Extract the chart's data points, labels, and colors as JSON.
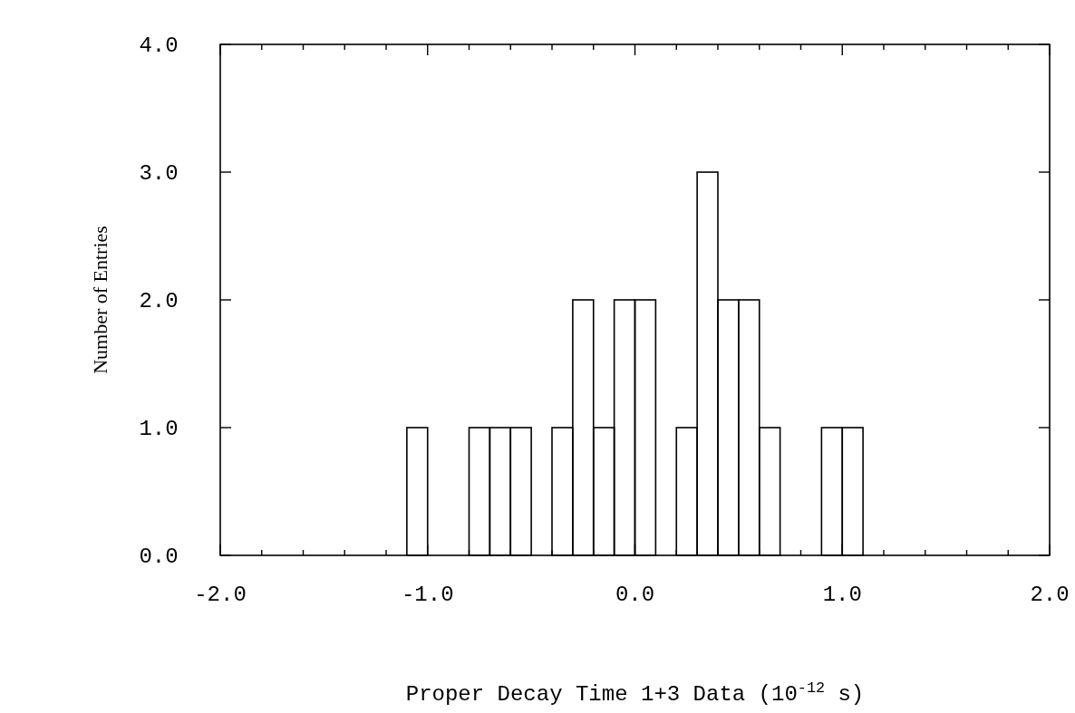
{
  "chart_data": {
    "type": "histogram",
    "xlabel": "Proper Decay Time 1+3 Data (10$^{-12}$ s)",
    "ylabel": "Number of Entries",
    "color": "#000000",
    "bins": [
      -2.0,
      -1.9,
      -1.8,
      -1.7,
      -1.6,
      -1.5,
      -1.4,
      -1.3,
      -1.2,
      -1.1,
      -1.0,
      -0.9,
      -0.8,
      -0.7,
      -0.6,
      -0.5,
      -0.4,
      -0.3,
      -0.2,
      -0.1,
      0.0,
      0.1,
      0.2,
      0.3,
      0.4,
      0.5,
      0.6,
      0.7,
      0.8,
      0.9,
      1.0,
      1.1,
      1.2,
      1.3,
      1.4,
      1.5,
      1.6,
      1.7,
      1.8,
      1.9,
      2.0
    ],
    "values": [
      0,
      0,
      0,
      0,
      0,
      0,
      0,
      0,
      0,
      1,
      0,
      0,
      1,
      1,
      1,
      0,
      1,
      2,
      1,
      2,
      2,
      0,
      1,
      3,
      2,
      2,
      1,
      0,
      0,
      1,
      1,
      0,
      0,
      0,
      0,
      0,
      0,
      0,
      0,
      0
    ],
    "xlim": [
      -2.0,
      2.0
    ],
    "ylim": [
      0.0,
      4.0
    ],
    "xticks": [
      {
        "value": -2.0,
        "label": "-2.0"
      },
      {
        "value": -1.8,
        "label": null
      },
      {
        "value": -1.6,
        "label": null
      },
      {
        "value": -1.4,
        "label": null
      },
      {
        "value": -1.2,
        "label": null
      },
      {
        "value": -1.0,
        "label": "-1.0"
      },
      {
        "value": -0.8,
        "label": null
      },
      {
        "value": -0.6,
        "label": null
      },
      {
        "value": -0.4,
        "label": null
      },
      {
        "value": -0.2,
        "label": null
      },
      {
        "value": 0.0,
        "label": "0.0"
      },
      {
        "value": 0.2,
        "label": null
      },
      {
        "value": 0.4,
        "label": null
      },
      {
        "value": 0.6,
        "label": null
      },
      {
        "value": 0.8,
        "label": null
      },
      {
        "value": 1.0,
        "label": "1.0"
      },
      {
        "value": 1.2,
        "label": null
      },
      {
        "value": 1.4,
        "label": null
      },
      {
        "value": 1.6,
        "label": null
      },
      {
        "value": 1.8,
        "label": null
      },
      {
        "value": 2.0,
        "label": "2.0"
      }
    ],
    "yticks": [
      {
        "value": 0.0,
        "label": "0.0"
      },
      {
        "value": 1.0,
        "label": "1.0"
      },
      {
        "value": 2.0,
        "label": "2.0"
      },
      {
        "value": 3.0,
        "label": "3.0"
      },
      {
        "value": 4.0,
        "label": "4.0"
      }
    ],
    "grid": false
  }
}
